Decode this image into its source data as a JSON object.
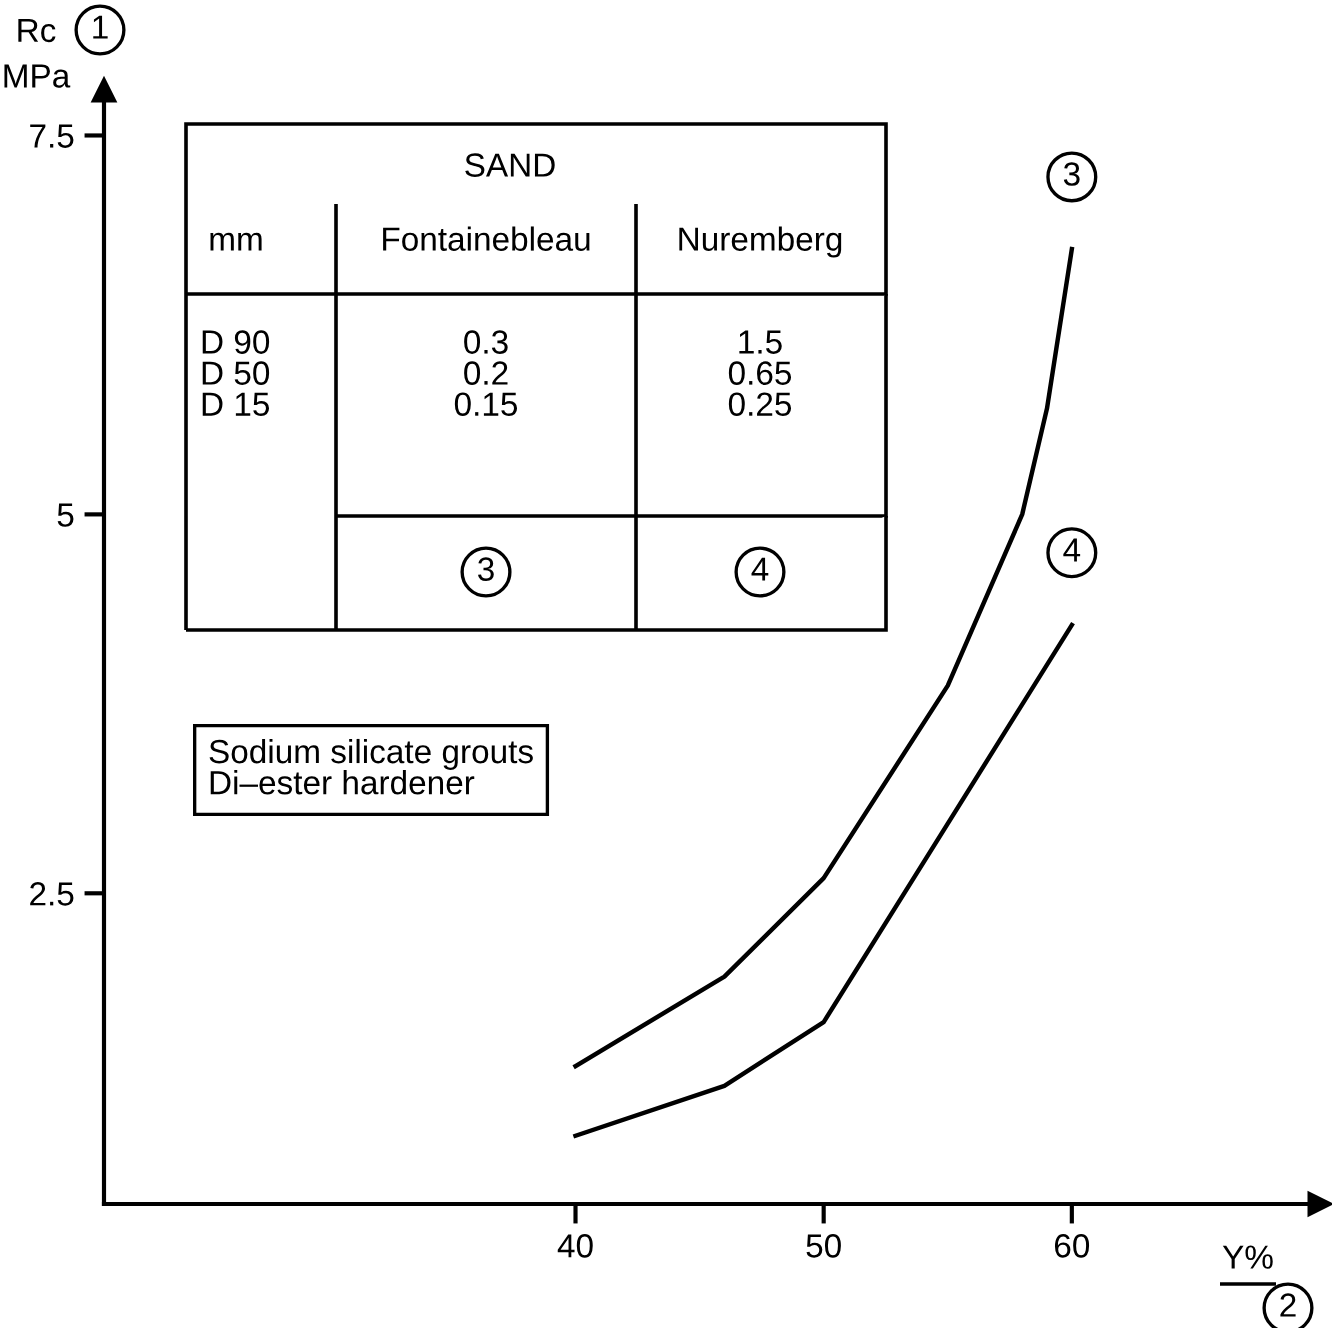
{
  "chart_data": {
    "type": "line",
    "xlabel": "Y%",
    "ylabel": "Rc\nMPa",
    "xlim": [
      21,
      70
    ],
    "ylim": [
      0.45,
      7.8
    ],
    "xticks": [
      40,
      50,
      60
    ],
    "yticks": [
      2.5,
      5,
      7.5
    ],
    "x": [
      40,
      46,
      50,
      55,
      58,
      59,
      60
    ],
    "series": [
      {
        "name": "3",
        "color": "#000000",
        "values": [
          1.36,
          1.95,
          2.6,
          3.87,
          5.0,
          5.7,
          6.75
        ]
      },
      {
        "name": "4",
        "color": "#000000",
        "x": [
          40,
          46,
          50,
          55,
          60
        ],
        "values": [
          0.9,
          1.23,
          1.65,
          2.96,
          4.27
        ]
      }
    ],
    "marker": "none",
    "line_style": "solid",
    "grid": false,
    "legend": false,
    "annotations": [
      "1",
      "2",
      "SAND",
      "mm",
      "Fontainebleau",
      "Nuremberg",
      "D 90\nD 50\nD 15",
      "0.3\n0.2\n0.15",
      "1.5\n0.65\n0.25",
      "3",
      "4",
      "Sodium silicate grouts\nDi–ester hardener"
    ]
  }
}
